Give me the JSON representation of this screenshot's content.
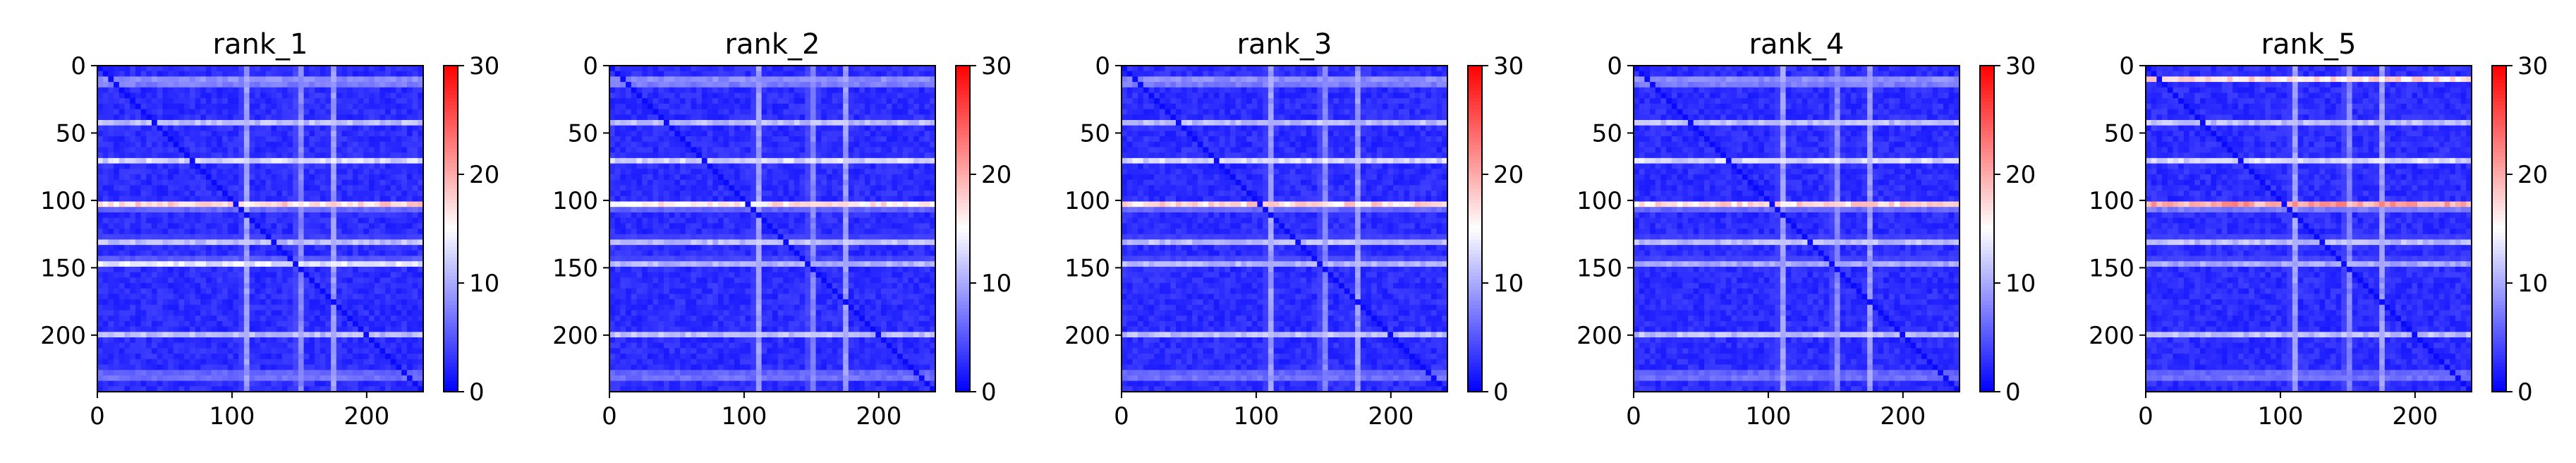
{
  "chart_data": [
    {
      "type": "heatmap",
      "title": "rank_1",
      "x_ticks": [
        0,
        100,
        200
      ],
      "y_ticks": [
        0,
        50,
        100,
        150,
        200
      ],
      "xlim": [
        0,
        242
      ],
      "ylim": [
        242,
        0
      ],
      "colorbar": {
        "ticks": [
          0,
          10,
          20,
          30
        ],
        "range": [
          0,
          30
        ]
      },
      "colormap": [
        "#0000ff",
        "#ffffff",
        "#ff0000"
      ],
      "bright_rows": [
        {
          "row": 12,
          "value": 15
        },
        {
          "row": 42,
          "value": 12
        },
        {
          "row": 70,
          "value": 14
        },
        {
          "row": 104,
          "value": 22
        },
        {
          "row": 130,
          "value": 14
        },
        {
          "row": 146,
          "value": 18
        },
        {
          "row": 200,
          "value": 12
        },
        {
          "row": 230,
          "value": 12
        }
      ],
      "bright_columns": [
        {
          "col": 110,
          "value": 12
        },
        {
          "col": 150,
          "value": 11
        },
        {
          "col": 175,
          "value": 11
        }
      ]
    },
    {
      "type": "heatmap",
      "title": "rank_2",
      "x_ticks": [
        0,
        100,
        200
      ],
      "y_ticks": [
        0,
        50,
        100,
        150,
        200
      ],
      "xlim": [
        0,
        242
      ],
      "ylim": [
        242,
        0
      ],
      "colorbar": {
        "ticks": [
          0,
          10,
          20,
          30
        ],
        "range": [
          0,
          30
        ]
      },
      "colormap": [
        "#0000ff",
        "#ffffff",
        "#ff0000"
      ],
      "bright_rows": [
        {
          "row": 12,
          "value": 15
        },
        {
          "row": 42,
          "value": 12
        },
        {
          "row": 70,
          "value": 14
        },
        {
          "row": 104,
          "value": 21
        },
        {
          "row": 130,
          "value": 14
        },
        {
          "row": 146,
          "value": 14
        },
        {
          "row": 200,
          "value": 12
        },
        {
          "row": 230,
          "value": 12
        }
      ],
      "bright_columns": [
        {
          "col": 110,
          "value": 12
        },
        {
          "col": 150,
          "value": 11
        },
        {
          "col": 175,
          "value": 11
        }
      ]
    },
    {
      "type": "heatmap",
      "title": "rank_3",
      "x_ticks": [
        0,
        100,
        200
      ],
      "y_ticks": [
        0,
        50,
        100,
        150,
        200
      ],
      "xlim": [
        0,
        242
      ],
      "ylim": [
        242,
        0
      ],
      "colorbar": {
        "ticks": [
          0,
          10,
          20,
          30
        ],
        "range": [
          0,
          30
        ]
      },
      "colormap": [
        "#0000ff",
        "#ffffff",
        "#ff0000"
      ],
      "bright_rows": [
        {
          "row": 12,
          "value": 15
        },
        {
          "row": 42,
          "value": 12
        },
        {
          "row": 70,
          "value": 14
        },
        {
          "row": 104,
          "value": 22
        },
        {
          "row": 130,
          "value": 14
        },
        {
          "row": 146,
          "value": 14
        },
        {
          "row": 200,
          "value": 12
        },
        {
          "row": 230,
          "value": 12
        }
      ],
      "bright_columns": [
        {
          "col": 110,
          "value": 12
        },
        {
          "col": 150,
          "value": 11
        },
        {
          "col": 175,
          "value": 11
        }
      ]
    },
    {
      "type": "heatmap",
      "title": "rank_4",
      "x_ticks": [
        0,
        100,
        200
      ],
      "y_ticks": [
        0,
        50,
        100,
        150,
        200
      ],
      "xlim": [
        0,
        242
      ],
      "ylim": [
        242,
        0
      ],
      "colorbar": {
        "ticks": [
          0,
          10,
          20,
          30
        ],
        "range": [
          0,
          30
        ]
      },
      "colormap": [
        "#0000ff",
        "#ffffff",
        "#ff0000"
      ],
      "bright_rows": [
        {
          "row": 12,
          "value": 15
        },
        {
          "row": 42,
          "value": 12
        },
        {
          "row": 70,
          "value": 14
        },
        {
          "row": 104,
          "value": 22
        },
        {
          "row": 130,
          "value": 14
        },
        {
          "row": 146,
          "value": 13
        },
        {
          "row": 200,
          "value": 12
        },
        {
          "row": 230,
          "value": 12
        }
      ],
      "bright_columns": [
        {
          "col": 110,
          "value": 12
        },
        {
          "col": 150,
          "value": 11
        },
        {
          "col": 175,
          "value": 11
        }
      ]
    },
    {
      "type": "heatmap",
      "title": "rank_5",
      "x_ticks": [
        0,
        100,
        200
      ],
      "y_ticks": [
        0,
        50,
        100,
        150,
        200
      ],
      "xlim": [
        0,
        242
      ],
      "ylim": [
        242,
        0
      ],
      "colorbar": {
        "ticks": [
          0,
          10,
          20,
          30
        ],
        "range": [
          0,
          30
        ]
      },
      "colormap": [
        "#0000ff",
        "#ffffff",
        "#ff0000"
      ],
      "bright_rows": [
        {
          "row": 10,
          "value": 18
        },
        {
          "row": 42,
          "value": 12
        },
        {
          "row": 70,
          "value": 14
        },
        {
          "row": 104,
          "value": 26
        },
        {
          "row": 130,
          "value": 14
        },
        {
          "row": 146,
          "value": 13
        },
        {
          "row": 200,
          "value": 12
        },
        {
          "row": 230,
          "value": 12
        }
      ],
      "bright_columns": [
        {
          "col": 110,
          "value": 12
        },
        {
          "col": 150,
          "value": 11
        },
        {
          "col": 175,
          "value": 11
        }
      ]
    }
  ]
}
